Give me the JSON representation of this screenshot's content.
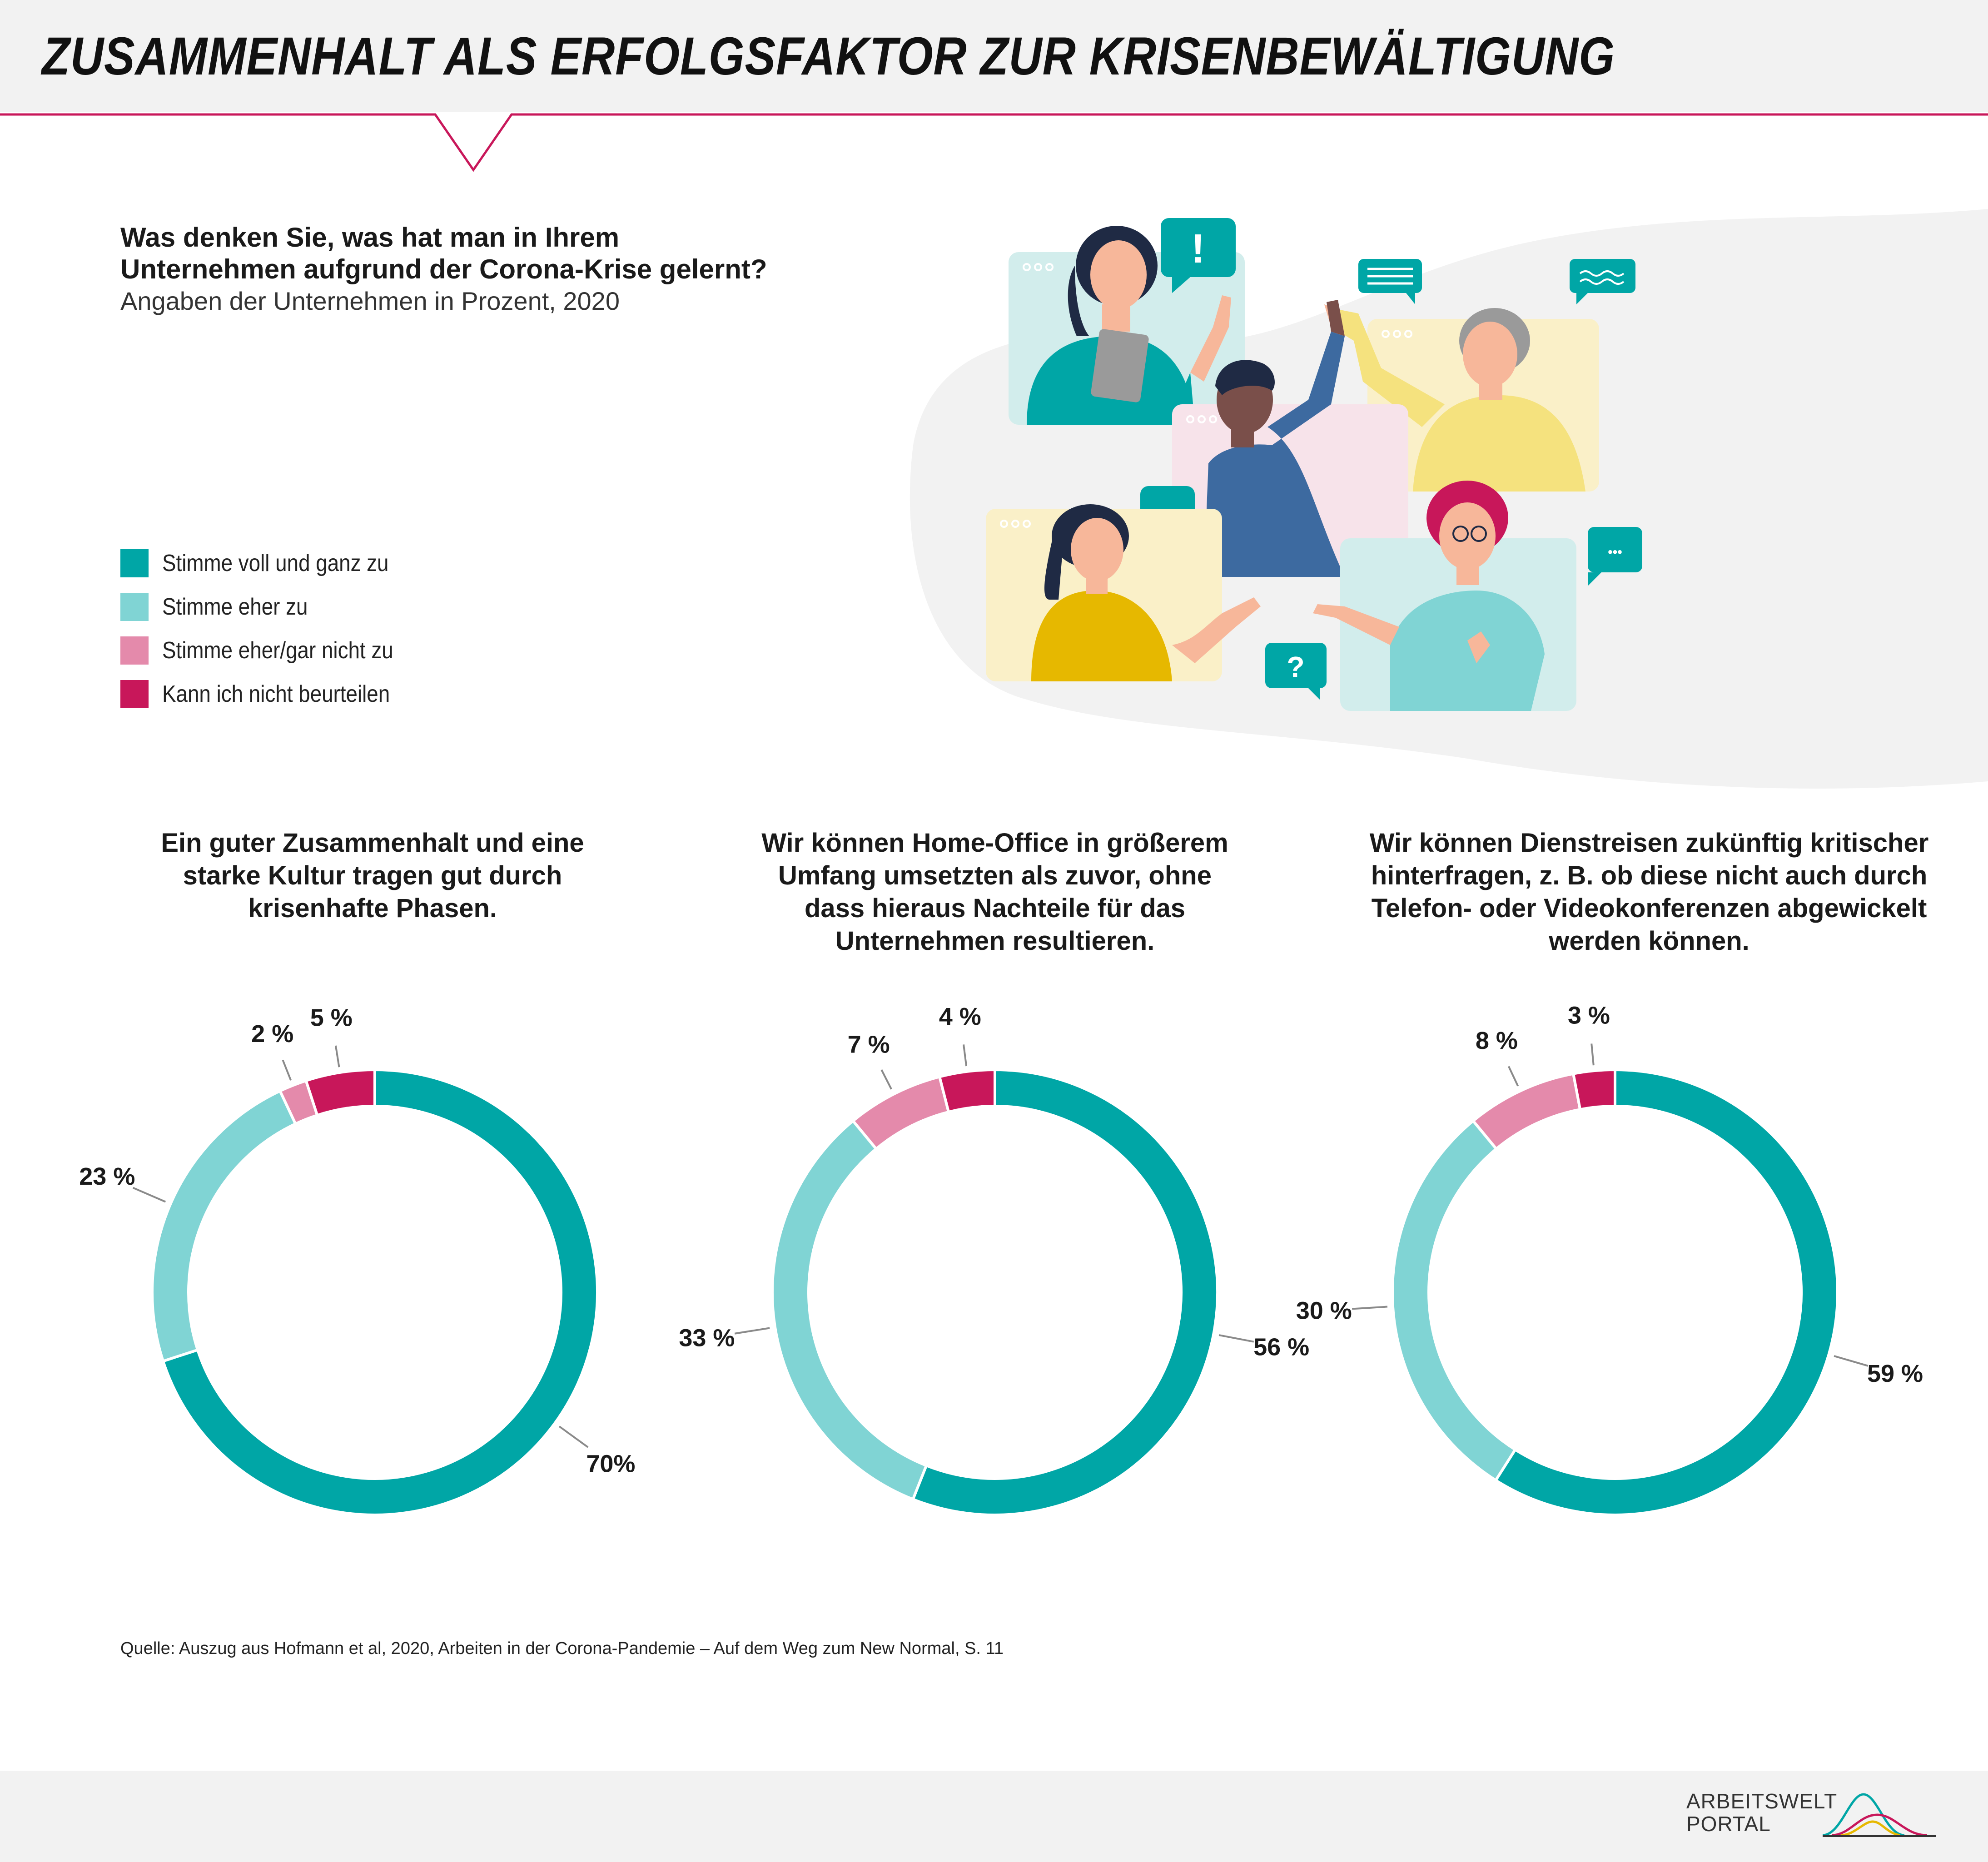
{
  "header": {
    "title": "ZUSAMMENHALT ALS ERFOLGSFAKTOR ZUR KRISENBEWÄLTIGUNG"
  },
  "question": {
    "line1": "Was denken Sie, was hat man in Ihrem",
    "line2": "Unternehmen aufgrund der Corona-Krise gelernt?",
    "subtitle": "Angaben der Unternehmen in Prozent, 2020"
  },
  "colors": {
    "accent": "#c8175a",
    "teal": "#00a6a6",
    "light_teal": "#80d4d4",
    "pink": "#e48aab",
    "crimson": "#c8175a",
    "blob": "#f2f2f2"
  },
  "legend": [
    {
      "label": "Stimme voll und ganz zu",
      "color": "#00a6a6"
    },
    {
      "label": "Stimme eher zu",
      "color": "#80d4d4"
    },
    {
      "label": "Stimme eher/gar nicht zu",
      "color": "#e48aab"
    },
    {
      "label": "Kann ich nicht beurteilen",
      "color": "#c8175a"
    }
  ],
  "chart_data": [
    {
      "type": "pie",
      "title": [
        "Ein guter Zusammenhalt und eine",
        "starke Kultur tragen gut durch",
        "krisenhafte Phasen."
      ],
      "categories": [
        "Stimme voll und ganz zu",
        "Stimme eher zu",
        "Stimme eher/gar nicht zu",
        "Kann ich nicht beurteilen"
      ],
      "values": [
        70,
        23,
        2,
        5
      ],
      "labels": [
        "70%",
        "23 %",
        "2 %",
        "5 %"
      ]
    },
    {
      "type": "pie",
      "title": [
        "Wir können Home-Office in größerem",
        "Umfang umsetzten als zuvor, ohne",
        "dass hieraus Nachteile für das",
        "Unternehmen resultieren."
      ],
      "categories": [
        "Stimme voll und ganz zu",
        "Stimme eher zu",
        "Stimme eher/gar nicht zu",
        "Kann ich nicht beurteilen"
      ],
      "values": [
        56,
        33,
        7,
        4
      ],
      "labels": [
        "56 %",
        "33 %",
        "7 %",
        "4 %"
      ]
    },
    {
      "type": "pie",
      "title": [
        "Wir können Dienstreisen zukünftig kritischer",
        "hinterfragen, z. B. ob diese nicht auch durch",
        "Telefon- oder Videokonferenzen abgewickelt",
        "werden können."
      ],
      "categories": [
        "Stimme voll und ganz zu",
        "Stimme eher zu",
        "Stimme eher/gar nicht zu",
        "Kann ich nicht beurteilen"
      ],
      "values": [
        59,
        30,
        8,
        3
      ],
      "labels": [
        "59 %",
        "30 %",
        "8 %",
        "3 %"
      ]
    }
  ],
  "footer": {
    "source": "Quelle: Auszug aus Hofmann et al, 2020, Arbeiten in der Corona-Pandemie – Auf dem Weg zum New Normal, S. 11",
    "logo_line1": "ARBEITSWELT",
    "logo_line2": "PORTAL"
  },
  "icons": [
    "exclamation-bubble-icon",
    "text-bubble-icon",
    "wave-bubble-icon",
    "dots-bubble-icon",
    "question-bubble-icon"
  ],
  "illustration": {
    "bubble_exclamation": "!",
    "bubble_question": "?",
    "bubble_dots": "•••"
  }
}
